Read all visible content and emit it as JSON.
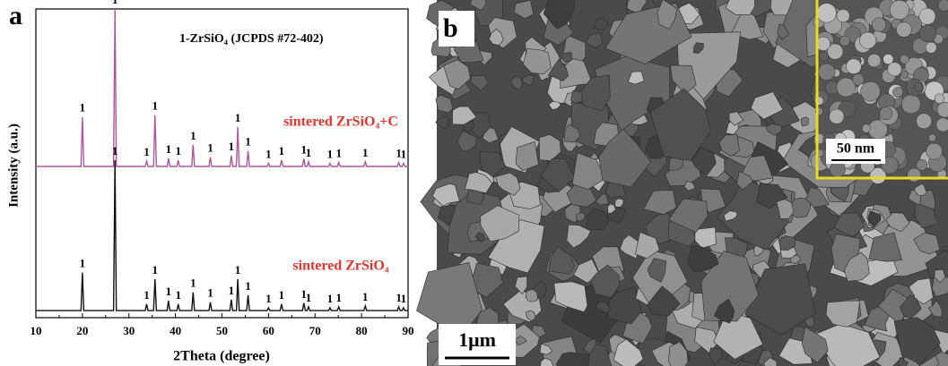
{
  "panel_a": "a",
  "panel_b": "b",
  "chart_data": {
    "type": "line",
    "annotation": "1-ZrSiO₄ (JCPDS #72-402)",
    "peak_label": "1",
    "x_label": "2Theta (degree)",
    "y_label": "Intensity (a.u.)",
    "xlim": [
      10,
      90
    ],
    "xticks": [
      10,
      20,
      30,
      40,
      50,
      60,
      70,
      80,
      90
    ],
    "ylim": [
      0,
      100
    ],
    "x": [
      10,
      19.7,
      20.0,
      20.3,
      26.7,
      27.0,
      27.3,
      33.5,
      33.8,
      34.1,
      35.3,
      35.6,
      35.9,
      38.2,
      38.5,
      38.8,
      40.3,
      40.6,
      40.9,
      43.5,
      43.8,
      44.1,
      47.2,
      47.5,
      47.8,
      51.7,
      52.0,
      52.3,
      53.1,
      53.4,
      53.7,
      55.3,
      55.6,
      55.9,
      59.7,
      60.0,
      60.3,
      62.5,
      62.8,
      63.1,
      67.3,
      67.6,
      67.9,
      68.3,
      68.6,
      68.9,
      72.9,
      73.2,
      73.5,
      74.8,
      75.1,
      75.4,
      80.5,
      80.8,
      81.1,
      87.7,
      88.0,
      88.3,
      88.7,
      89.0,
      89.3,
      90
    ],
    "series": [
      {
        "name": "sintered ZrSiO₄+C",
        "color": "#b0559f",
        "values": [
          49,
          49,
          65,
          49,
          49,
          100,
          49,
          49,
          50.7,
          49,
          49,
          65.6,
          49,
          49,
          51.6,
          49,
          49,
          51,
          49,
          49,
          56,
          49,
          49,
          52,
          49,
          49,
          52.5,
          49,
          49,
          61.8,
          49,
          49,
          54,
          49,
          49,
          50,
          49,
          49,
          51,
          49,
          49,
          51.5,
          49,
          49,
          50.5,
          49,
          49,
          50,
          49,
          49,
          50.3,
          49,
          49,
          50.5,
          49,
          49,
          50.3,
          49,
          49,
          50,
          49,
          49
        ]
      },
      {
        "name": "sintered ZrSiO₄",
        "color": "#111111",
        "values": [
          2.3,
          2.3,
          14.6,
          2.3,
          2.3,
          51,
          2.3,
          2.3,
          4.4,
          2.3,
          2.3,
          12.5,
          2.3,
          2.3,
          5.5,
          2.3,
          2.3,
          4.4,
          2.3,
          2.3,
          8.2,
          2.3,
          2.3,
          5,
          2.3,
          2.3,
          5.8,
          2.3,
          2.3,
          12.5,
          2.3,
          2.3,
          7.3,
          2.3,
          2.3,
          3.2,
          2.3,
          2.3,
          4.4,
          2.3,
          2.3,
          4.7,
          2.3,
          2.3,
          3.5,
          2.3,
          2.3,
          3.2,
          2.3,
          2.3,
          3.5,
          2.3,
          2.3,
          3.8,
          2.3,
          2.3,
          3.5,
          2.3,
          2.3,
          3.2,
          2.3,
          2.3
        ]
      }
    ]
  },
  "scale_bar": "1μm",
  "inset_scale_bar": "50 nm"
}
